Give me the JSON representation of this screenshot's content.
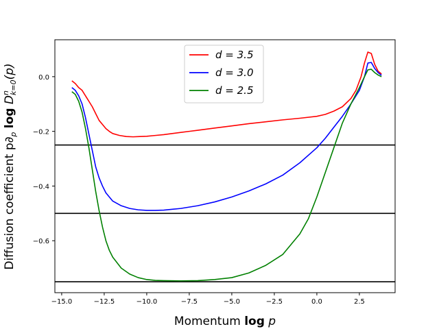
{
  "chart_data": {
    "type": "line",
    "title": "",
    "xlabel": {
      "prefix": "Momentum ",
      "bold": "log",
      "suffix": " p"
    },
    "ylabel": {
      "prefix": "Diffusion coefficient p∂",
      "sub_p": "p",
      "bold": "log",
      "D": " D",
      "sup": "n",
      "sub": "k=0",
      "suffix": "(p)"
    },
    "xlim": [
      -15.4,
      4.6
    ],
    "ylim": [
      -0.79,
      0.135
    ],
    "xticks": [
      -15.0,
      -12.5,
      -10.0,
      -7.5,
      -5.0,
      -2.5,
      0.0,
      2.5
    ],
    "xtick_labels": [
      "−15.0",
      "−12.5",
      "−10.0",
      "−7.5",
      "−5.0",
      "−2.5",
      "0.0",
      "2.5"
    ],
    "yticks": [
      0.0,
      -0.2,
      -0.4,
      -0.6
    ],
    "ytick_labels": [
      "0.0",
      "−0.2",
      "−0.4",
      "−0.6"
    ],
    "grid": false,
    "legend_position": "top-center",
    "hlines": [
      {
        "y": -0.25,
        "color": "#000000"
      },
      {
        "y": -0.5,
        "color": "#000000"
      },
      {
        "y": -0.75,
        "color": "#000000"
      }
    ],
    "series": [
      {
        "name": "d = 3.5",
        "color": "#ff0000",
        "x": [
          -14.4,
          -14.2,
          -14.0,
          -13.8,
          -13.6,
          -13.4,
          -13.2,
          -13.0,
          -12.8,
          -12.6,
          -12.4,
          -12.2,
          -12.0,
          -11.6,
          -11.2,
          -10.8,
          -10.4,
          -10.0,
          -9.5,
          -9.0,
          -8.5,
          -8.0,
          -7.5,
          -7.0,
          -6.0,
          -5.0,
          -4.0,
          -3.0,
          -2.0,
          -1.0,
          0.0,
          0.5,
          1.0,
          1.5,
          2.0,
          2.3,
          2.6,
          2.8,
          3.0,
          3.2,
          3.4,
          3.6,
          3.8
        ],
        "y": [
          -0.015,
          -0.025,
          -0.04,
          -0.05,
          -0.07,
          -0.09,
          -0.11,
          -0.135,
          -0.16,
          -0.175,
          -0.19,
          -0.2,
          -0.208,
          -0.215,
          -0.219,
          -0.22,
          -0.219,
          -0.218,
          -0.215,
          -0.212,
          -0.208,
          -0.204,
          -0.2,
          -0.196,
          -0.188,
          -0.18,
          -0.172,
          -0.165,
          -0.158,
          -0.152,
          -0.145,
          -0.138,
          -0.126,
          -0.11,
          -0.08,
          -0.05,
          0.0,
          0.05,
          0.09,
          0.085,
          0.045,
          0.02,
          0.01
        ]
      },
      {
        "name": "d = 3.0",
        "color": "#0000ff",
        "x": [
          -14.4,
          -14.2,
          -14.0,
          -13.8,
          -13.6,
          -13.4,
          -13.2,
          -13.0,
          -12.8,
          -12.6,
          -12.4,
          -12.2,
          -12.0,
          -11.5,
          -11.0,
          -10.5,
          -10.0,
          -9.5,
          -9.0,
          -8.0,
          -7.0,
          -6.0,
          -5.0,
          -4.0,
          -3.0,
          -2.0,
          -1.0,
          0.0,
          0.5,
          1.0,
          1.5,
          2.0,
          2.5,
          2.8,
          3.0,
          3.2,
          3.4,
          3.6,
          3.8
        ],
        "y": [
          -0.04,
          -0.05,
          -0.07,
          -0.1,
          -0.15,
          -0.21,
          -0.27,
          -0.33,
          -0.37,
          -0.4,
          -0.425,
          -0.44,
          -0.455,
          -0.472,
          -0.482,
          -0.487,
          -0.489,
          -0.489,
          -0.488,
          -0.482,
          -0.472,
          -0.458,
          -0.44,
          -0.418,
          -0.392,
          -0.36,
          -0.315,
          -0.26,
          -0.225,
          -0.185,
          -0.145,
          -0.1,
          -0.05,
          0.0,
          0.05,
          0.052,
          0.03,
          0.015,
          0.005
        ]
      },
      {
        "name": "d = 2.5",
        "color": "#008000",
        "x": [
          -14.4,
          -14.2,
          -14.0,
          -13.8,
          -13.6,
          -13.4,
          -13.2,
          -13.0,
          -12.8,
          -12.6,
          -12.4,
          -12.2,
          -12.0,
          -11.5,
          -11.0,
          -10.5,
          -10.0,
          -9.5,
          -9.0,
          -8.0,
          -7.0,
          -6.0,
          -5.0,
          -4.0,
          -3.0,
          -2.0,
          -1.0,
          -0.5,
          0.0,
          0.5,
          1.0,
          1.5,
          2.0,
          2.5,
          2.8,
          3.0,
          3.2,
          3.4,
          3.6,
          3.8
        ],
        "y": [
          -0.055,
          -0.065,
          -0.09,
          -0.13,
          -0.19,
          -0.26,
          -0.34,
          -0.42,
          -0.49,
          -0.55,
          -0.6,
          -0.635,
          -0.66,
          -0.7,
          -0.722,
          -0.735,
          -0.742,
          -0.745,
          -0.746,
          -0.747,
          -0.746,
          -0.742,
          -0.735,
          -0.718,
          -0.69,
          -0.65,
          -0.575,
          -0.52,
          -0.44,
          -0.35,
          -0.26,
          -0.17,
          -0.1,
          -0.04,
          0.0,
          0.025,
          0.027,
          0.015,
          0.006,
          0.0
        ]
      }
    ]
  }
}
